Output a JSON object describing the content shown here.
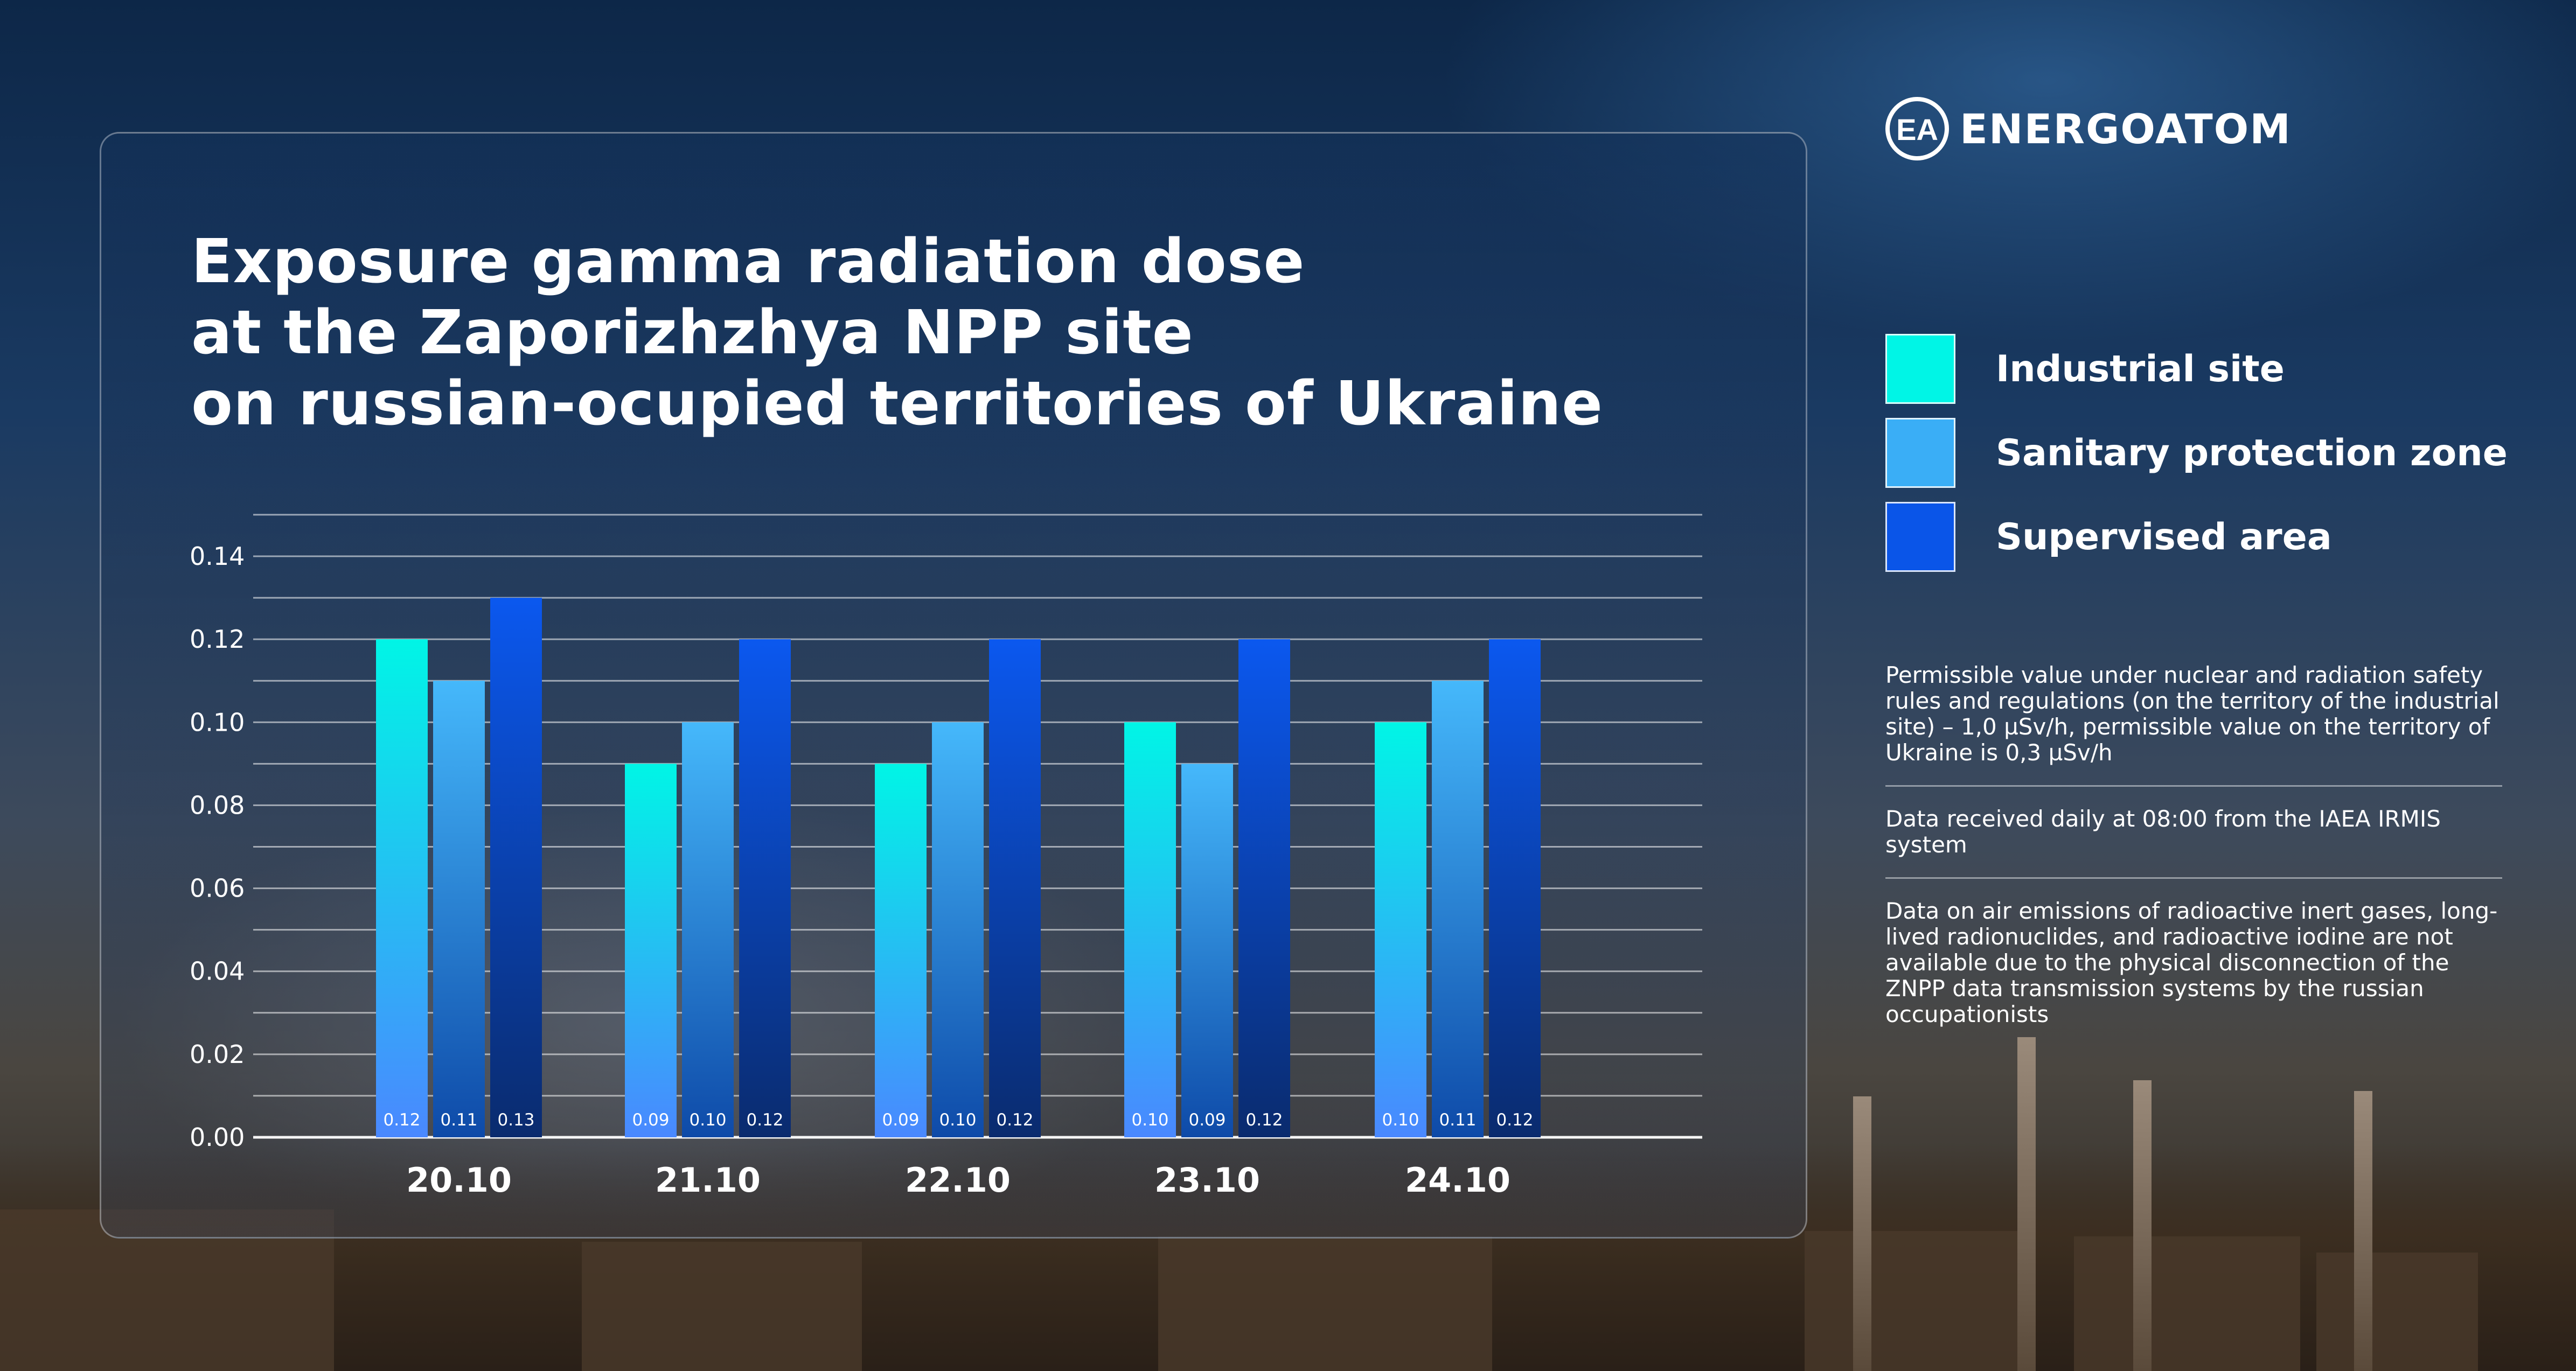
{
  "brand": {
    "name": "ENERGOATOM",
    "monogram": "EA"
  },
  "title_lines": [
    "Exposure gamma radiation dose",
    "at the Zaporizhzhya NPP site",
    "on russian-ocupied territories of Ukraine"
  ],
  "legend": [
    {
      "label": "Industrial site",
      "color": "#00f5e6"
    },
    {
      "label": "Sanitary protection zone",
      "color": "#3aaef6"
    },
    {
      "label": "Supervised area",
      "color": "#0a55e8"
    }
  ],
  "notes": [
    "Permissible value under nuclear and radiation safety rules and regulations (on the territory of the industrial site) – 1,0 µSv/h, permissible value on the territory of Ukraine is 0,3 µSv/h",
    "Data received daily at 08:00 from the IAEA IRMIS system",
    "Data on air emissions of radioactive inert gases, long-lived radionuclides, and radioactive iodine are not available due to the physical disconnection of the ZNPP data transmission systems by the russian occupationists"
  ],
  "chart_data": {
    "type": "bar",
    "title": "Exposure gamma radiation dose at the Zaporizhzhya NPP site on russian-ocupied territories of Ukraine",
    "categories": [
      "20.10",
      "21.10",
      "22.10",
      "23.10",
      "24.10"
    ],
    "series": [
      {
        "name": "Industrial site",
        "values": [
          0.12,
          0.09,
          0.09,
          0.1,
          0.1
        ],
        "labels": [
          "0.12",
          "0.09",
          "0.09",
          "0.10",
          "0.10"
        ],
        "color_top": "#00f5e6",
        "color_bottom": "#4a88ff"
      },
      {
        "name": "Sanitary protection zone",
        "values": [
          0.11,
          0.1,
          0.1,
          0.09,
          0.11
        ],
        "labels": [
          "0.11",
          "0.10",
          "0.10",
          "0.09",
          "0.11"
        ],
        "color_top": "#45b8fb",
        "color_bottom": "#0e4aa8"
      },
      {
        "name": "Supervised area",
        "values": [
          0.13,
          0.12,
          0.12,
          0.12,
          0.12
        ],
        "labels": [
          "0.13",
          "0.12",
          "0.12",
          "0.12",
          "0.12"
        ],
        "color_top": "#0b58ef",
        "color_bottom": "#0a2b6e"
      }
    ],
    "yticks": [
      0.0,
      0.02,
      0.04,
      0.06,
      0.08,
      0.1,
      0.12,
      0.14
    ],
    "ytick_labels": [
      "0.00",
      "0.02",
      "0.04",
      "0.06",
      "0.08",
      "0.10",
      "0.12",
      "0.14"
    ],
    "grid_step": 0.01,
    "ylim": [
      0,
      0.15
    ],
    "xlabel": "",
    "ylabel": ""
  }
}
